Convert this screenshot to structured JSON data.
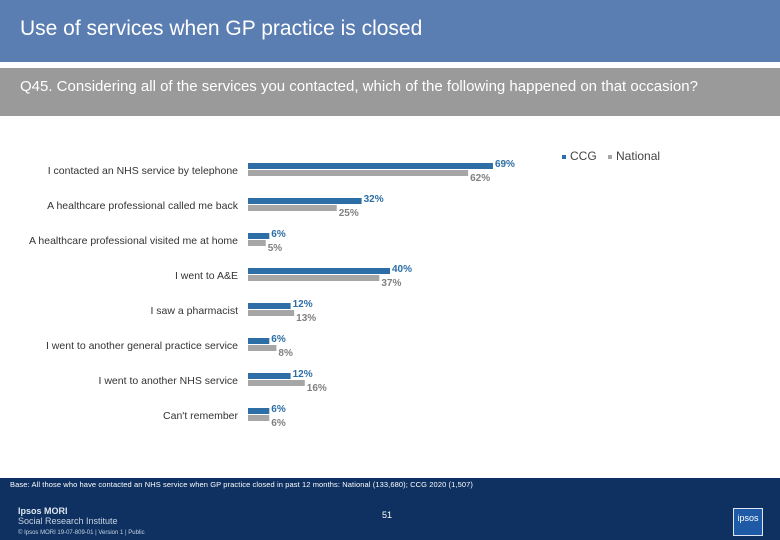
{
  "header": {
    "title": "Use of services when GP practice is closed",
    "question": "Q45. Considering all of the services you contacted, which of the following happened on that occasion?"
  },
  "colors": {
    "ccg": "#2e6ea6",
    "national": "#a6a6a6",
    "title_bar": "#5a7db2",
    "question_bar": "#9a9a9a",
    "footer": "#0e3161"
  },
  "chart_data": {
    "type": "bar",
    "orientation": "horizontal",
    "categories": [
      "I contacted an NHS service by telephone",
      "A healthcare professional called me back",
      "A healthcare professional visited me at home",
      "I went to A&E",
      "I saw a pharmacist",
      "I went to another general practice service",
      "I went to another NHS service",
      "Can't remember"
    ],
    "series": [
      {
        "name": "CCG",
        "values": [
          69,
          32,
          6,
          40,
          12,
          6,
          12,
          6
        ]
      },
      {
        "name": "National",
        "values": [
          62,
          25,
          5,
          37,
          13,
          8,
          16,
          6
        ]
      }
    ],
    "value_suffix": "%",
    "legend": "top-right"
  },
  "footer": {
    "base": "Base: All those who have contacted an NHS service when GP practice closed in past 12 months: National (133,680); CCG 2020 (1,507)",
    "page_number": "51",
    "logo_line1": "Ipsos MORI",
    "logo_line2": "Social Research Institute",
    "copyright": "© Ipsos MORI     19-07-809-01 | Version 1 | Public"
  }
}
